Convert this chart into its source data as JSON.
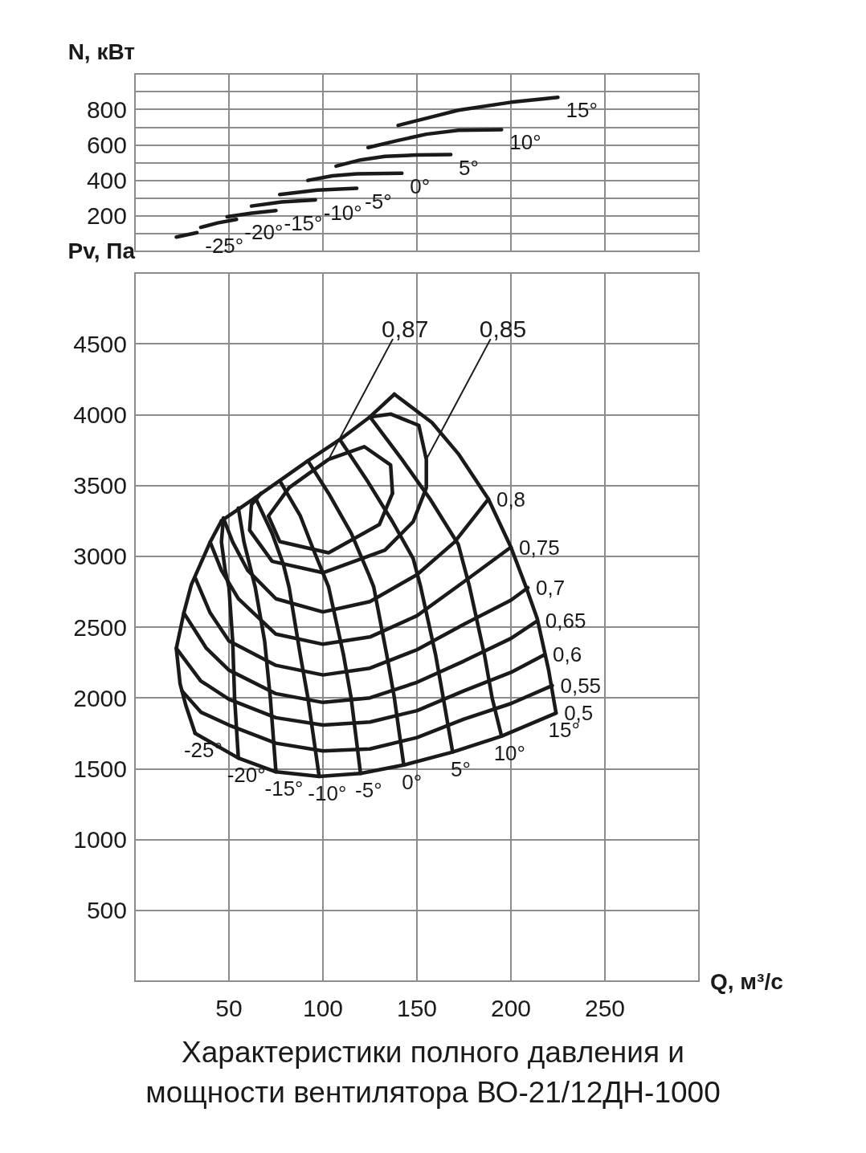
{
  "chart_data": [
    {
      "type": "line",
      "ylabel": "N, кВт",
      "xlim": [
        0,
        300
      ],
      "xticks": [
        50,
        100,
        150,
        200,
        250
      ],
      "ylim": [
        0,
        1000
      ],
      "yticks": [
        {
          "value": 100,
          "label": null
        },
        200,
        {
          "value": 300,
          "label": null
        },
        400,
        {
          "value": 500,
          "label": null
        },
        600,
        {
          "value": 700,
          "label": null
        },
        800,
        {
          "value": 900,
          "label": null
        }
      ],
      "tick_labels": "y",
      "grid": true,
      "series": [
        {
          "name": "-25°",
          "color": "#1a1a1a",
          "x": [
            22,
            33
          ],
          "values": [
            80,
            105
          ]
        },
        {
          "name": "-20°",
          "color": "#1a1a1a",
          "x": [
            35,
            44,
            54
          ],
          "values": [
            135,
            160,
            180
          ]
        },
        {
          "name": "-15°",
          "color": "#1a1a1a",
          "x": [
            49,
            62,
            75
          ],
          "values": [
            195,
            215,
            230
          ]
        },
        {
          "name": "-10°",
          "color": "#1a1a1a",
          "x": [
            62,
            78,
            96
          ],
          "values": [
            255,
            278,
            290
          ]
        },
        {
          "name": "-5°",
          "color": "#1a1a1a",
          "x": [
            77,
            97,
            118
          ],
          "values": [
            320,
            345,
            355
          ]
        },
        {
          "name": "0°",
          "color": "#1a1a1a",
          "x": [
            92,
            105,
            118,
            142
          ],
          "values": [
            400,
            425,
            437,
            440
          ]
        },
        {
          "name": "5°",
          "color": "#1a1a1a",
          "x": [
            107,
            120,
            133,
            150,
            168
          ],
          "values": [
            480,
            515,
            535,
            543,
            545
          ]
        },
        {
          "name": "10°",
          "color": "#1a1a1a",
          "x": [
            124,
            140,
            155,
            172,
            195
          ],
          "values": [
            585,
            625,
            660,
            682,
            686
          ]
        },
        {
          "name": "15°",
          "color": "#1a1a1a",
          "x": [
            140,
            157,
            172,
            200,
            225
          ],
          "values": [
            710,
            755,
            795,
            840,
            868
          ]
        }
      ]
    },
    {
      "type": "line",
      "title": "Характеристики полного давления и мощности вентилятора ВО-21/12ДН-1000",
      "ylabel": "Pv, Па",
      "xlabel": "Q, м³/с",
      "xlim": [
        0,
        300
      ],
      "xticks": [
        50,
        100,
        150,
        200,
        250
      ],
      "ylim": [
        0,
        5000
      ],
      "yticks": [
        500,
        1000,
        1500,
        2000,
        2500,
        3000,
        3500,
        4000,
        4500
      ],
      "grid": true,
      "annotations": [
        {
          "text": "0,87",
          "x": 103,
          "y": 3684
        },
        {
          "text": "0,85",
          "x": 155,
          "y": 3684
        }
      ],
      "series": [
        {
          "color": "#1a1a1a",
          "x": [
            46,
            64,
            77,
            92,
            109,
            125,
            138
          ],
          "values": [
            3250,
            3414,
            3534,
            3674,
            3824,
            3984,
            4144
          ]
        },
        {
          "name": "-25°",
          "color": "#1a1a1a",
          "x": [
            46,
            40,
            35,
            30,
            26,
            22,
            24,
            27,
            32
          ],
          "values": [
            3250,
            3100,
            2950,
            2800,
            2600,
            2350,
            2100,
            1950,
            1750
          ]
        },
        {
          "name": "-20°",
          "color": "#1a1a1a",
          "x": [
            47,
            46,
            48,
            50,
            52,
            53,
            55
          ],
          "values": [
            3262,
            3100,
            2900,
            2780,
            2400,
            2000,
            1575
          ]
        },
        {
          "name": "-15°",
          "color": "#1a1a1a",
          "x": [
            55,
            58,
            61,
            64,
            69,
            72,
            75
          ],
          "values": [
            3340,
            3100,
            2940,
            2780,
            2400,
            2000,
            1478
          ]
        },
        {
          "name": "-10°",
          "color": "#1a1a1a",
          "x": [
            64,
            73,
            79,
            82,
            88,
            92,
            98
          ],
          "values": [
            3414,
            3160,
            2940,
            2780,
            2300,
            2000,
            1445
          ]
        },
        {
          "name": "-5°",
          "color": "#1a1a1a",
          "x": [
            77,
            88,
            95,
            103,
            111,
            115,
            120
          ],
          "values": [
            3534,
            3284,
            3044,
            2784,
            2300,
            2000,
            1467
          ]
        },
        {
          "name": "0°",
          "color": "#1a1a1a",
          "x": [
            92,
            103,
            115,
            124,
            127,
            134,
            138,
            143
          ],
          "values": [
            3674,
            3444,
            3164,
            2884,
            2784,
            2300,
            2000,
            1526
          ]
        },
        {
          "name": "5°",
          "color": "#1a1a1a",
          "x": [
            109,
            124,
            137,
            148,
            152,
            160,
            164,
            169
          ],
          "values": [
            3824,
            3524,
            3244,
            2984,
            2784,
            2300,
            2000,
            1618
          ]
        },
        {
          "name": "10°",
          "color": "#1a1a1a",
          "x": [
            125,
            142,
            157,
            172,
            178,
            186,
            190,
            195
          ],
          "values": [
            3984,
            3684,
            3404,
            3084,
            2784,
            2300,
            2000,
            1730
          ]
        },
        {
          "name": "15°",
          "color": "#1a1a1a",
          "x": [
            138,
            158,
            172,
            188,
            200,
            208,
            214,
            220,
            224
          ],
          "values": [
            4144,
            3944,
            3724,
            3404,
            3064,
            2784,
            2560,
            2200,
            1893
          ]
        },
        {
          "name": "0,5",
          "color": "#1a1a1a",
          "x": [
            32,
            55,
            75,
            98,
            120,
            143,
            169,
            195,
            224
          ],
          "values": [
            1750,
            1575,
            1478,
            1445,
            1467,
            1526,
            1618,
            1730,
            1893
          ]
        },
        {
          "name": "0,55",
          "color": "#1a1a1a",
          "x": [
            25,
            35,
            50,
            75,
            100,
            125,
            150,
            175,
            200,
            222
          ],
          "values": [
            2050,
            1900,
            1808,
            1680,
            1626,
            1640,
            1720,
            1850,
            1960,
            2087
          ]
        },
        {
          "name": "0,6",
          "color": "#1a1a1a",
          "x": [
            22,
            35,
            50,
            75,
            100,
            125,
            150,
            175,
            200,
            218
          ],
          "values": [
            2350,
            2120,
            1991,
            1860,
            1808,
            1830,
            1910,
            2050,
            2180,
            2306
          ]
        },
        {
          "name": "0,65",
          "color": "#1a1a1a",
          "x": [
            26,
            38,
            50,
            75,
            100,
            125,
            150,
            175,
            200,
            214
          ],
          "values": [
            2600,
            2350,
            2196,
            2030,
            1968,
            2000,
            2110,
            2260,
            2420,
            2543
          ]
        },
        {
          "name": "0,7",
          "color": "#1a1a1a",
          "x": [
            32,
            40,
            50,
            75,
            100,
            125,
            150,
            175,
            200,
            209
          ],
          "values": [
            2850,
            2600,
            2402,
            2230,
            2162,
            2210,
            2340,
            2520,
            2690,
            2778
          ]
        },
        {
          "name": "0,75",
          "color": "#1a1a1a",
          "x": [
            40,
            46,
            55,
            75,
            100,
            125,
            150,
            175,
            200
          ],
          "values": [
            3100,
            2900,
            2700,
            2450,
            2379,
            2430,
            2580,
            2820,
            3064
          ]
        },
        {
          "name": "0,8",
          "color": "#1a1a1a",
          "x": [
            47,
            52,
            60,
            75,
            100,
            125,
            150,
            170,
            188
          ],
          "values": [
            3270,
            3100,
            2900,
            2700,
            2607,
            2680,
            2870,
            3100,
            3404
          ]
        },
        {
          "color": "#1a1a1a",
          "x": [
            125,
            136,
            151,
            155,
            155,
            148,
            133,
            100,
            73,
            61,
            62,
            67
          ],
          "values": [
            3984,
            4004,
            3924,
            3684,
            3484,
            3244,
            3044,
            2884,
            2964,
            3184,
            3364,
            3444
          ]
        },
        {
          "color": "#1a1a1a",
          "x": [
            71,
            82,
            103,
            122,
            136,
            137
          ],
          "values": [
            3284,
            3484,
            3684,
            3774,
            3644,
            3444
          ]
        },
        {
          "color": "#1a1a1a",
          "x": [
            137,
            130,
            103,
            77,
            71
          ],
          "values": [
            3444,
            3224,
            3024,
            3104,
            3284
          ]
        }
      ]
    }
  ]
}
